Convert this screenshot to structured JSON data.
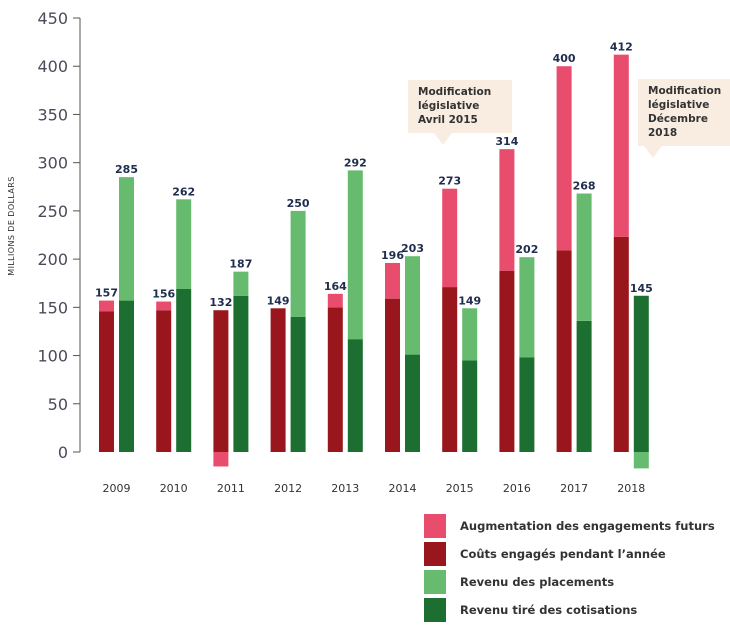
{
  "chart_data": {
    "type": "bar",
    "ylabel": "MILLIONS DE DOLLARS",
    "ylim": [
      -20,
      450
    ],
    "yticks": [
      0,
      50,
      100,
      150,
      200,
      250,
      300,
      350,
      400,
      450
    ],
    "categories": [
      "2009",
      "2010",
      "2011",
      "2012",
      "2013",
      "2014",
      "2015",
      "2016",
      "2017",
      "2018"
    ],
    "cost_totals": [
      157,
      156,
      132,
      149,
      164,
      196,
      273,
      314,
      400,
      412
    ],
    "revenue_totals": [
      285,
      262,
      187,
      250,
      292,
      203,
      149,
      202,
      268,
      145
    ],
    "series": [
      {
        "name": "Augmentation des engagements futurs",
        "stack": "cost",
        "color": "#e94d6e",
        "values": [
          11,
          9,
          -15,
          0,
          14,
          37,
          102,
          126,
          191,
          189
        ]
      },
      {
        "name": "Coûts engagés pendant l’année",
        "stack": "cost",
        "color": "#99171c",
        "values": [
          146,
          147,
          147,
          149,
          150,
          159,
          171,
          188,
          209,
          223
        ]
      },
      {
        "name": "Revenu des placements",
        "stack": "revenue",
        "color": "#66bb6e",
        "values": [
          128,
          93,
          25,
          110,
          175,
          102,
          54,
          104,
          132,
          -17
        ]
      },
      {
        "name": "Revenu tiré des cotisations",
        "stack": "revenue",
        "color": "#1c6e31",
        "values": [
          157,
          169,
          162,
          140,
          117,
          101,
          95,
          98,
          136,
          162
        ]
      }
    ],
    "annotations": [
      {
        "lines": [
          "Modification",
          "législative",
          "Avril 2015"
        ]
      },
      {
        "lines": [
          "Modification",
          "législative",
          "Décembre",
          "2018"
        ]
      }
    ],
    "legend_position": "bottom-right",
    "grid": false
  }
}
